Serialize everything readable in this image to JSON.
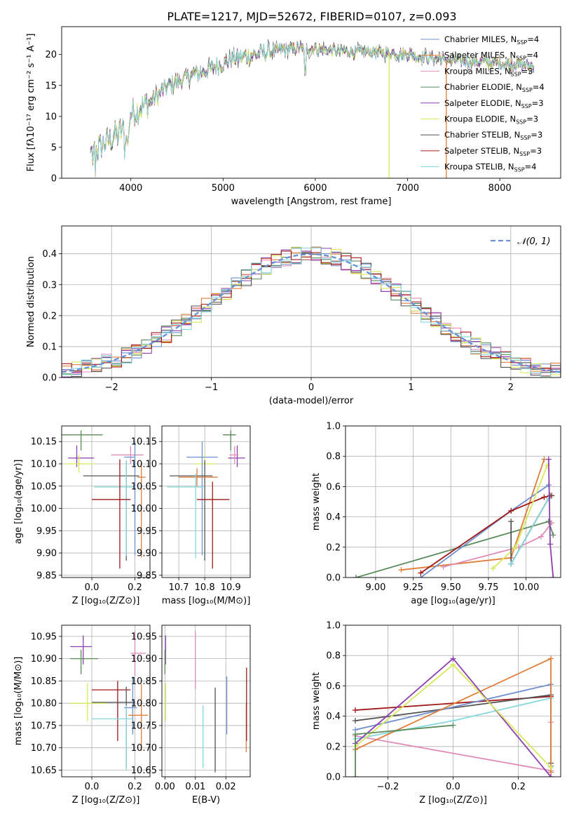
{
  "title": "PLATE=1217, MJD=52672, FIBERID=0107, z=0.093",
  "colors": {
    "Chabrier MILES": "#6f8fcf",
    "Salpeter MILES": "#e07d3a",
    "Kroupa MILES": "#e08bb8",
    "Chabrier ELODIE": "#5a8a5a",
    "Salpeter ELODIE": "#8e3fb0",
    "Kroupa ELODIE": "#d9e85a",
    "Chabrier STELIB": "#555555",
    "Salpeter STELIB": "#a01818",
    "Kroupa STELIB": "#86d8dc"
  },
  "legend": [
    {
      "lib": "Chabrier MILES",
      "text": "Chabrier MILES, N",
      "sub": "SSP",
      "tail": "=4"
    },
    {
      "lib": "Salpeter MILES",
      "text": "Salpeter MILES, N",
      "sub": "SSP",
      "tail": "=4"
    },
    {
      "lib": "Kroupa MILES",
      "text": "Kroupa MILES, N",
      "sub": "SSP",
      "tail": "=3"
    },
    {
      "lib": "Chabrier ELODIE",
      "text": "Chabrier ELODIE, N",
      "sub": "SSP",
      "tail": "=4"
    },
    {
      "lib": "Salpeter ELODIE",
      "text": "Salpeter ELODIE, N",
      "sub": "SSP",
      "tail": "=3"
    },
    {
      "lib": "Kroupa ELODIE",
      "text": "Kroupa ELODIE, N",
      "sub": "SSP",
      "tail": "=3"
    },
    {
      "lib": "Chabrier STELIB",
      "text": "Chabrier STELIB, N",
      "sub": "SSP",
      "tail": "=3"
    },
    {
      "lib": "Salpeter STELIB",
      "text": "Salpeter STELIB, N",
      "sub": "SSP",
      "tail": "=3"
    },
    {
      "lib": "Kroupa STELIB",
      "text": "Kroupa STELIB, N",
      "sub": "SSP",
      "tail": "=4"
    }
  ],
  "chart_data": [
    {
      "id": "spectrum",
      "type": "line",
      "xlabel": "wavelength [Angstrom, rest frame]",
      "ylabel": "Flux [fλ10⁻¹⁷ erg cm⁻² s⁻¹ A⁻¹]",
      "xlim": [
        3250,
        8660
      ],
      "ylim": [
        0,
        24.5
      ],
      "xticks": [
        4000,
        5000,
        6000,
        7000,
        8000
      ],
      "yticks": [
        0,
        5,
        10,
        15,
        20
      ],
      "continuum": {
        "x": [
          3560,
          3700,
          3850,
          3950,
          4000,
          4200,
          4400,
          4600,
          4800,
          5000,
          5200,
          5400,
          5600,
          5800,
          6000,
          6200,
          6500,
          6800,
          7000,
          7200,
          7500,
          7800,
          8000,
          8200,
          8370
        ],
        "y": [
          3.8,
          5.5,
          7.0,
          8.3,
          10.5,
          12.2,
          14.8,
          16.3,
          17.3,
          18.6,
          19.6,
          20.2,
          20.8,
          21.0,
          21.0,
          20.6,
          20.4,
          20.3,
          20.0,
          19.5,
          19.0,
          18.8,
          18.6,
          18.4,
          18.2
        ]
      },
      "spikes": [
        {
          "x": 6800,
          "lib": "Kroupa ELODIE"
        },
        {
          "x": 7420,
          "lib": "Salpeter MILES"
        }
      ]
    },
    {
      "id": "residuals",
      "type": "step",
      "xlabel": "(data-model)/error",
      "ylabel": "Normed distribution",
      "xlim": [
        -2.5,
        2.5
      ],
      "ylim": [
        0,
        0.49
      ],
      "xticks": [
        -2,
        -1,
        0,
        1,
        2
      ],
      "yticks": [
        0.0,
        0.1,
        0.2,
        0.3,
        0.4
      ],
      "bin_width": 0.1,
      "reference": {
        "name": "𝒩(0, 1)",
        "mean": 0,
        "sigma": 1
      }
    },
    {
      "id": "age_vs_Z",
      "type": "errorbar",
      "xlabel": "Z [log₁₀(Z/Z⊙)]",
      "ylabel": "age  [log₁₀(age/yr)]",
      "xlim": [
        -0.14,
        0.27
      ],
      "ylim": [
        9.845,
        10.185
      ],
      "xticks": [
        0.0,
        0.2
      ],
      "yticks": [
        9.85,
        9.9,
        9.95,
        10.0,
        10.05,
        10.1,
        10.15
      ],
      "points": [
        {
          "lib": "Chabrier ELODIE",
          "x": -0.05,
          "y": 10.165,
          "xerr": [
            0.12,
            0.1
          ],
          "yerr": [
            0.035,
            0.01
          ]
        },
        {
          "lib": "Salpeter ELODIE",
          "x": -0.07,
          "y": 10.113,
          "xerr": [
            0.04,
            0.08
          ],
          "yerr": [
            0.02,
            0.028
          ]
        },
        {
          "lib": "Kroupa ELODIE",
          "x": -0.06,
          "y": 10.1,
          "xerr": [
            0.06,
            0.07
          ],
          "yerr": [
            0.02,
            0.02
          ]
        },
        {
          "lib": "Kroupa MILES",
          "x": 0.18,
          "y": 10.12,
          "xerr": [
            0.09,
            0.06
          ],
          "yerr": [
            0.02,
            0.02
          ]
        },
        {
          "lib": "Chabrier MILES",
          "x": 0.2,
          "y": 10.115,
          "xerr": [
            0.05,
            0.0
          ],
          "yerr": [
            0.22,
            0.035
          ]
        },
        {
          "lib": "Chabrier STELIB",
          "x": 0.16,
          "y": 10.073,
          "xerr": [
            0.2,
            0.06
          ],
          "yerr": [
            0.19,
            0.035
          ]
        },
        {
          "lib": "Salpeter MILES",
          "x": 0.23,
          "y": 10.07,
          "xerr": [
            0.02,
            0.02
          ],
          "yerr": [
            0.18,
            0.035
          ]
        },
        {
          "lib": "Kroupa STELIB",
          "x": 0.16,
          "y": 10.048,
          "xerr": [
            0.15,
            0.04
          ],
          "yerr": [
            0.155,
            0.06
          ]
        },
        {
          "lib": "Salpeter STELIB",
          "x": 0.13,
          "y": 10.02,
          "xerr": [
            0.13,
            0.05
          ],
          "yerr": [
            0.155,
            0.09
          ]
        }
      ]
    },
    {
      "id": "age_vs_mass",
      "type": "errorbar",
      "xlabel": "mass [log₁₀(M/M⊙)]",
      "ylabel": "",
      "xlim": [
        10.635,
        10.975
      ],
      "ylim": [
        9.845,
        10.185
      ],
      "xticks": [
        10.7,
        10.8,
        10.9
      ],
      "yticks": [
        9.85,
        9.9,
        9.95,
        10.0,
        10.05,
        10.1,
        10.15
      ],
      "points": [
        {
          "lib": "Chabrier ELODIE",
          "x": 10.9,
          "y": 10.165,
          "xerr": [
            0.03,
            0.02
          ],
          "yerr": [
            0.035,
            0.01
          ]
        },
        {
          "lib": "Salpeter ELODIE",
          "x": 10.925,
          "y": 10.113,
          "xerr": [
            0.035,
            0.03
          ],
          "yerr": [
            0.02,
            0.028
          ]
        },
        {
          "lib": "Kroupa ELODIE",
          "x": 10.8,
          "y": 10.1,
          "xerr": [
            0.04,
            0.04
          ],
          "yerr": [
            0.02,
            0.02
          ]
        },
        {
          "lib": "Kroupa MILES",
          "x": 10.915,
          "y": 10.12,
          "xerr": [
            0.02,
            0.015
          ],
          "yerr": [
            0.02,
            0.02
          ]
        },
        {
          "lib": "Chabrier MILES",
          "x": 10.79,
          "y": 10.115,
          "xerr": [
            0.06,
            0.06
          ],
          "yerr": [
            0.22,
            0.035
          ]
        },
        {
          "lib": "Chabrier STELIB",
          "x": 10.8,
          "y": 10.073,
          "xerr": [
            0.135,
            0.03
          ],
          "yerr": [
            0.19,
            0.035
          ]
        },
        {
          "lib": "Salpeter MILES",
          "x": 10.77,
          "y": 10.07,
          "xerr": [
            0.07,
            0.08
          ],
          "yerr": [
            0.02,
            0.02
          ]
        },
        {
          "lib": "Kroupa STELIB",
          "x": 10.765,
          "y": 10.048,
          "xerr": [
            0.11,
            0.03
          ],
          "yerr": [
            0.16,
            0.03
          ]
        },
        {
          "lib": "Salpeter STELIB",
          "x": 10.83,
          "y": 10.02,
          "xerr": [
            0.06,
            0.065
          ],
          "yerr": [
            0.155,
            0.04
          ]
        }
      ]
    },
    {
      "id": "weight_vs_age",
      "type": "line",
      "xlabel": "age  [log₁₀(age/yr)]",
      "ylabel": "mass weight",
      "xlim": [
        8.8,
        10.23
      ],
      "ylim": [
        0,
        1.0
      ],
      "xticks": [
        9.0,
        9.5,
        10.0
      ],
      "xtick_labels": [
        "9.00",
        "9.25",
        "9.50",
        "9.75",
        "10.00"
      ],
      "xtick_values": [
        9.0,
        9.25,
        9.5,
        9.75,
        10.0
      ],
      "yticks": [
        0.0,
        0.2,
        0.4,
        0.6,
        0.8,
        1.0
      ],
      "series": [
        {
          "lib": "Chabrier ELODIE",
          "x": [
            8.87,
            10.15,
            10.18
          ],
          "y": [
            0.0,
            0.37,
            0.28
          ]
        },
        {
          "lib": "Salpeter MILES",
          "x": [
            9.17,
            9.9,
            10.12
          ],
          "y": [
            0.05,
            0.13,
            0.78
          ]
        },
        {
          "lib": "Chabrier MILES",
          "x": [
            9.3,
            9.9,
            10.15
          ],
          "y": [
            0.0,
            0.44,
            0.61
          ]
        },
        {
          "lib": "Salpeter STELIB",
          "x": [
            9.3,
            9.9,
            10.12,
            10.17
          ],
          "y": [
            0.03,
            0.44,
            0.53,
            0.54
          ]
        },
        {
          "lib": "Kroupa MILES",
          "x": [
            9.45,
            9.95,
            10.1,
            10.17
          ],
          "y": [
            0.07,
            0.2,
            0.27,
            0.36
          ]
        },
        {
          "lib": "Kroupa ELODIE",
          "x": [
            9.78,
            9.93,
            10.14
          ],
          "y": [
            0.06,
            0.2,
            0.74
          ]
        },
        {
          "lib": "Chabrier STELIB",
          "x": [
            9.9,
            9.9,
            10.16
          ],
          "y": [
            0.37,
            0.09,
            0.54
          ]
        },
        {
          "lib": "Kroupa STELIB",
          "x": [
            9.9,
            10.15
          ],
          "y": [
            0.09,
            0.52
          ]
        },
        {
          "lib": "Salpeter ELODIE",
          "x": [
            10.15,
            10.16,
            10.18
          ],
          "y": [
            0.78,
            0.22,
            0.0
          ]
        }
      ]
    },
    {
      "id": "mass_vs_Z",
      "type": "errorbar",
      "xlabel": "Z [log₁₀(Z/Z⊙)]",
      "ylabel": "mass [log₁₀(M/M⊙)]",
      "xlim": [
        -0.14,
        0.27
      ],
      "ylim": [
        10.635,
        10.975
      ],
      "xticks": [
        0.0,
        0.2
      ],
      "yticks": [
        10.65,
        10.7,
        10.75,
        10.8,
        10.85,
        10.9,
        10.95
      ],
      "points": [
        {
          "lib": "Salpeter ELODIE",
          "x": -0.04,
          "y": 10.927,
          "xerr": [
            0.06,
            0.04
          ],
          "yerr": [
            0.04,
            0.025
          ]
        },
        {
          "lib": "Chabrier ELODIE",
          "x": -0.05,
          "y": 10.9,
          "xerr": [
            0.05,
            0.08
          ],
          "yerr": [
            0.035,
            0.02
          ]
        },
        {
          "lib": "Kroupa MILES",
          "x": 0.2,
          "y": 10.912,
          "xerr": [
            0.02,
            0.05
          ],
          "yerr": [
            0.05,
            0.05
          ]
        },
        {
          "lib": "Salpeter STELIB",
          "x": 0.12,
          "y": 10.83,
          "xerr": [
            0.12,
            0.06
          ],
          "yerr": [
            0.115,
            0.02
          ]
        },
        {
          "lib": "Chabrier STELIB",
          "x": 0.16,
          "y": 10.802,
          "xerr": [
            0.16,
            0.04
          ],
          "yerr": [
            0.147,
            0.035
          ]
        },
        {
          "lib": "Kroupa ELODIE",
          "x": -0.02,
          "y": 10.8,
          "xerr": [
            0.08,
            0.09
          ],
          "yerr": [
            0.04,
            0.045
          ]
        },
        {
          "lib": "Chabrier MILES",
          "x": 0.19,
          "y": 10.79,
          "xerr": [
            0.04,
            0.02
          ],
          "yerr": [
            0.06,
            0.07
          ]
        },
        {
          "lib": "Salpeter MILES",
          "x": 0.23,
          "y": 10.773,
          "xerr": [
            0.06,
            0.03
          ],
          "yerr": [
            0.08,
            0.07
          ]
        },
        {
          "lib": "Kroupa STELIB",
          "x": 0.16,
          "y": 10.765,
          "xerr": [
            0.16,
            0.03
          ],
          "yerr": [
            0.115,
            0.03
          ]
        }
      ]
    },
    {
      "id": "mass_vs_ebv",
      "type": "errorbar",
      "xlabel": "E(B-V)",
      "ylabel": "",
      "xlim": [
        -0.001,
        0.028
      ],
      "ylim": [
        10.635,
        10.975
      ],
      "xticks": [
        0.0,
        0.01,
        0.02
      ],
      "yticks": [
        10.65,
        10.7,
        10.75,
        10.8,
        10.85,
        10.9,
        10.95
      ],
      "points": [
        {
          "lib": "Salpeter ELODIE",
          "x": 0.0002,
          "y": 10.927,
          "xerr": [
            0,
            0
          ],
          "yerr": [
            0.04,
            0.025
          ]
        },
        {
          "lib": "Chabrier ELODIE",
          "x": 0.0,
          "y": 10.9,
          "xerr": [
            0,
            0
          ],
          "yerr": [
            0.035,
            0.02
          ]
        },
        {
          "lib": "Kroupa ELODIE",
          "x": 0.0002,
          "y": 10.8,
          "xerr": [
            0,
            0
          ],
          "yerr": [
            0.04,
            0.045
          ]
        },
        {
          "lib": "Kroupa MILES",
          "x": 0.01,
          "y": 10.912,
          "xerr": [
            0,
            0
          ],
          "yerr": [
            0.08,
            0.05
          ]
        },
        {
          "lib": "Kroupa STELIB",
          "x": 0.0125,
          "y": 10.765,
          "xerr": [
            0,
            0
          ],
          "yerr": [
            0.11,
            0.03
          ]
        },
        {
          "lib": "Chabrier STELIB",
          "x": 0.0165,
          "y": 10.78,
          "xerr": [
            0,
            0
          ],
          "yerr": [
            0.135,
            0.055
          ]
        },
        {
          "lib": "Chabrier MILES",
          "x": 0.0203,
          "y": 10.79,
          "xerr": [
            0,
            0
          ],
          "yerr": [
            0.06,
            0.07
          ]
        },
        {
          "lib": "Salpeter MILES",
          "x": 0.0267,
          "y": 10.75,
          "xerr": [
            0,
            0
          ],
          "yerr": [
            0.06,
            0.05
          ]
        },
        {
          "lib": "Salpeter STELIB",
          "x": 0.0268,
          "y": 10.83,
          "xerr": [
            0,
            0
          ],
          "yerr": [
            0.115,
            0.05
          ]
        }
      ]
    },
    {
      "id": "weight_vs_Z",
      "type": "line",
      "xlabel": "Z [log₁₀(Z/Z⊙)]",
      "ylabel": "mass weight",
      "xlim": [
        -0.33,
        0.33
      ],
      "ylim": [
        0,
        1.0
      ],
      "xticks": [
        -0.2,
        0.0,
        0.2
      ],
      "yticks": [
        0.0,
        0.2,
        0.4,
        0.6,
        0.8,
        1.0
      ],
      "series": [
        {
          "lib": "Salpeter STELIB",
          "x": [
            -0.3,
            0.3
          ],
          "y": [
            0.44,
            0.53
          ]
        },
        {
          "lib": "Chabrier STELIB",
          "x": [
            -0.3,
            0.3,
            0.3
          ],
          "y": [
            0.37,
            0.54,
            0.09
          ]
        },
        {
          "lib": "Chabrier MILES",
          "x": [
            -0.3,
            0.3,
            0.3
          ],
          "y": [
            0.31,
            0.61,
            0.07
          ]
        },
        {
          "lib": "Kroupa MILES",
          "x": [
            -0.3,
            0.3,
            0.3
          ],
          "y": [
            0.27,
            0.04,
            0.36
          ]
        },
        {
          "lib": "Kroupa STELIB",
          "x": [
            -0.3,
            0.0,
            0.3
          ],
          "y": [
            0.25,
            0.37,
            0.52
          ]
        },
        {
          "lib": "Salpeter MILES",
          "x": [
            -0.3,
            0.3,
            0.3
          ],
          "y": [
            0.18,
            0.78,
            0.03
          ]
        },
        {
          "lib": "Salpeter ELODIE",
          "x": [
            -0.3,
            0.0,
            0.3
          ],
          "y": [
            0.22,
            0.78,
            0.0
          ]
        },
        {
          "lib": "Kroupa ELODIE",
          "x": [
            -0.3,
            0.0,
            0.3
          ],
          "y": [
            0.2,
            0.74,
            0.06
          ]
        },
        {
          "lib": "Chabrier ELODIE",
          "x": [
            -0.3,
            -0.3,
            0.0
          ],
          "y": [
            0.0,
            0.28,
            0.34
          ]
        }
      ]
    }
  ]
}
